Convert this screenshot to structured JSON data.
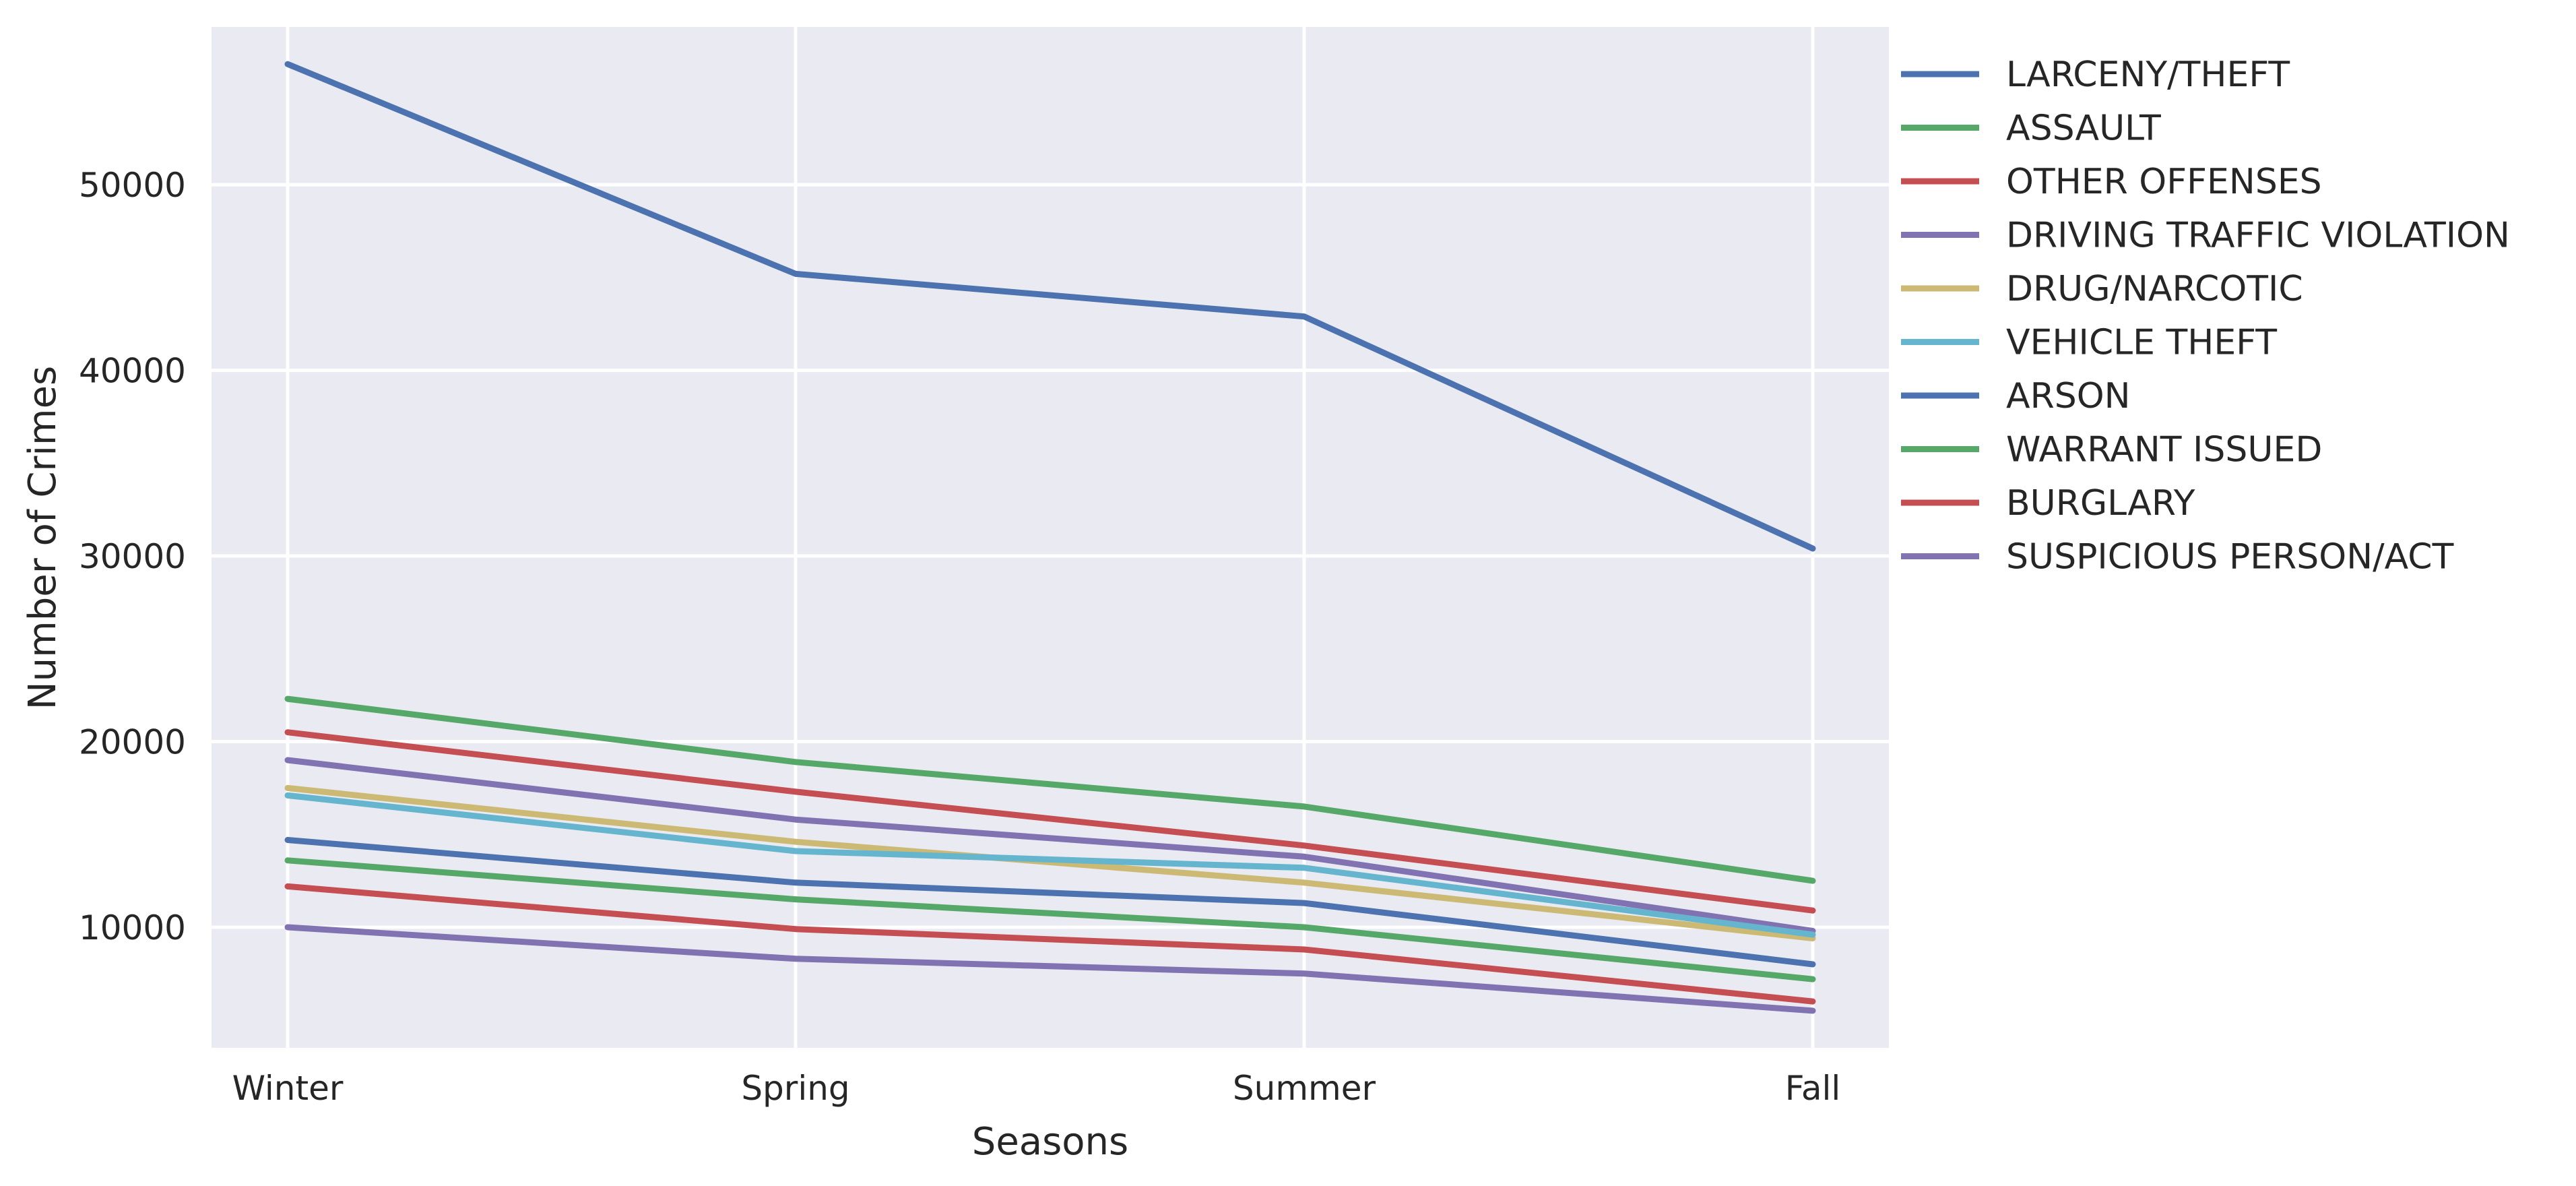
{
  "chart_data": {
    "type": "line",
    "title": "",
    "xlabel": "Seasons",
    "ylabel": "Number of Crimes",
    "categories": [
      "Winter",
      "Spring",
      "Summer",
      "Fall"
    ],
    "ylim": [
      3500,
      58500
    ],
    "yticks": [
      10000,
      20000,
      30000,
      40000,
      50000
    ],
    "grid": true,
    "legend_position": "outside-right",
    "background": "#eaeaf2",
    "series": [
      {
        "name": "LARCENY/THEFT",
        "color": "#4c72b0",
        "values": [
          56500,
          45200,
          42900,
          30400
        ]
      },
      {
        "name": "ASSAULT",
        "color": "#55a868",
        "values": [
          22300,
          18900,
          16500,
          12500
        ]
      },
      {
        "name": "OTHER OFFENSES",
        "color": "#c44e52",
        "values": [
          20500,
          17300,
          14400,
          10900
        ]
      },
      {
        "name": "DRIVING TRAFFIC VIOLATION",
        "color": "#8172b2",
        "values": [
          19000,
          15800,
          13800,
          9800
        ]
      },
      {
        "name": "DRUG/NARCOTIC",
        "color": "#ccb974",
        "values": [
          17500,
          14600,
          12400,
          9400
        ]
      },
      {
        "name": "VEHICLE THEFT",
        "color": "#64b5cd",
        "values": [
          17100,
          14100,
          13200,
          9600
        ]
      },
      {
        "name": "ARSON",
        "color": "#4c72b0",
        "values": [
          14700,
          12400,
          11300,
          8000
        ]
      },
      {
        "name": "WARRANT ISSUED",
        "color": "#55a868",
        "values": [
          13600,
          11500,
          10000,
          7200
        ]
      },
      {
        "name": "BURGLARY",
        "color": "#c44e52",
        "values": [
          12200,
          9900,
          8800,
          6000
        ]
      },
      {
        "name": "SUSPICIOUS PERSON/ACT",
        "color": "#8172b2",
        "values": [
          10000,
          8300,
          7500,
          5500
        ]
      }
    ]
  }
}
